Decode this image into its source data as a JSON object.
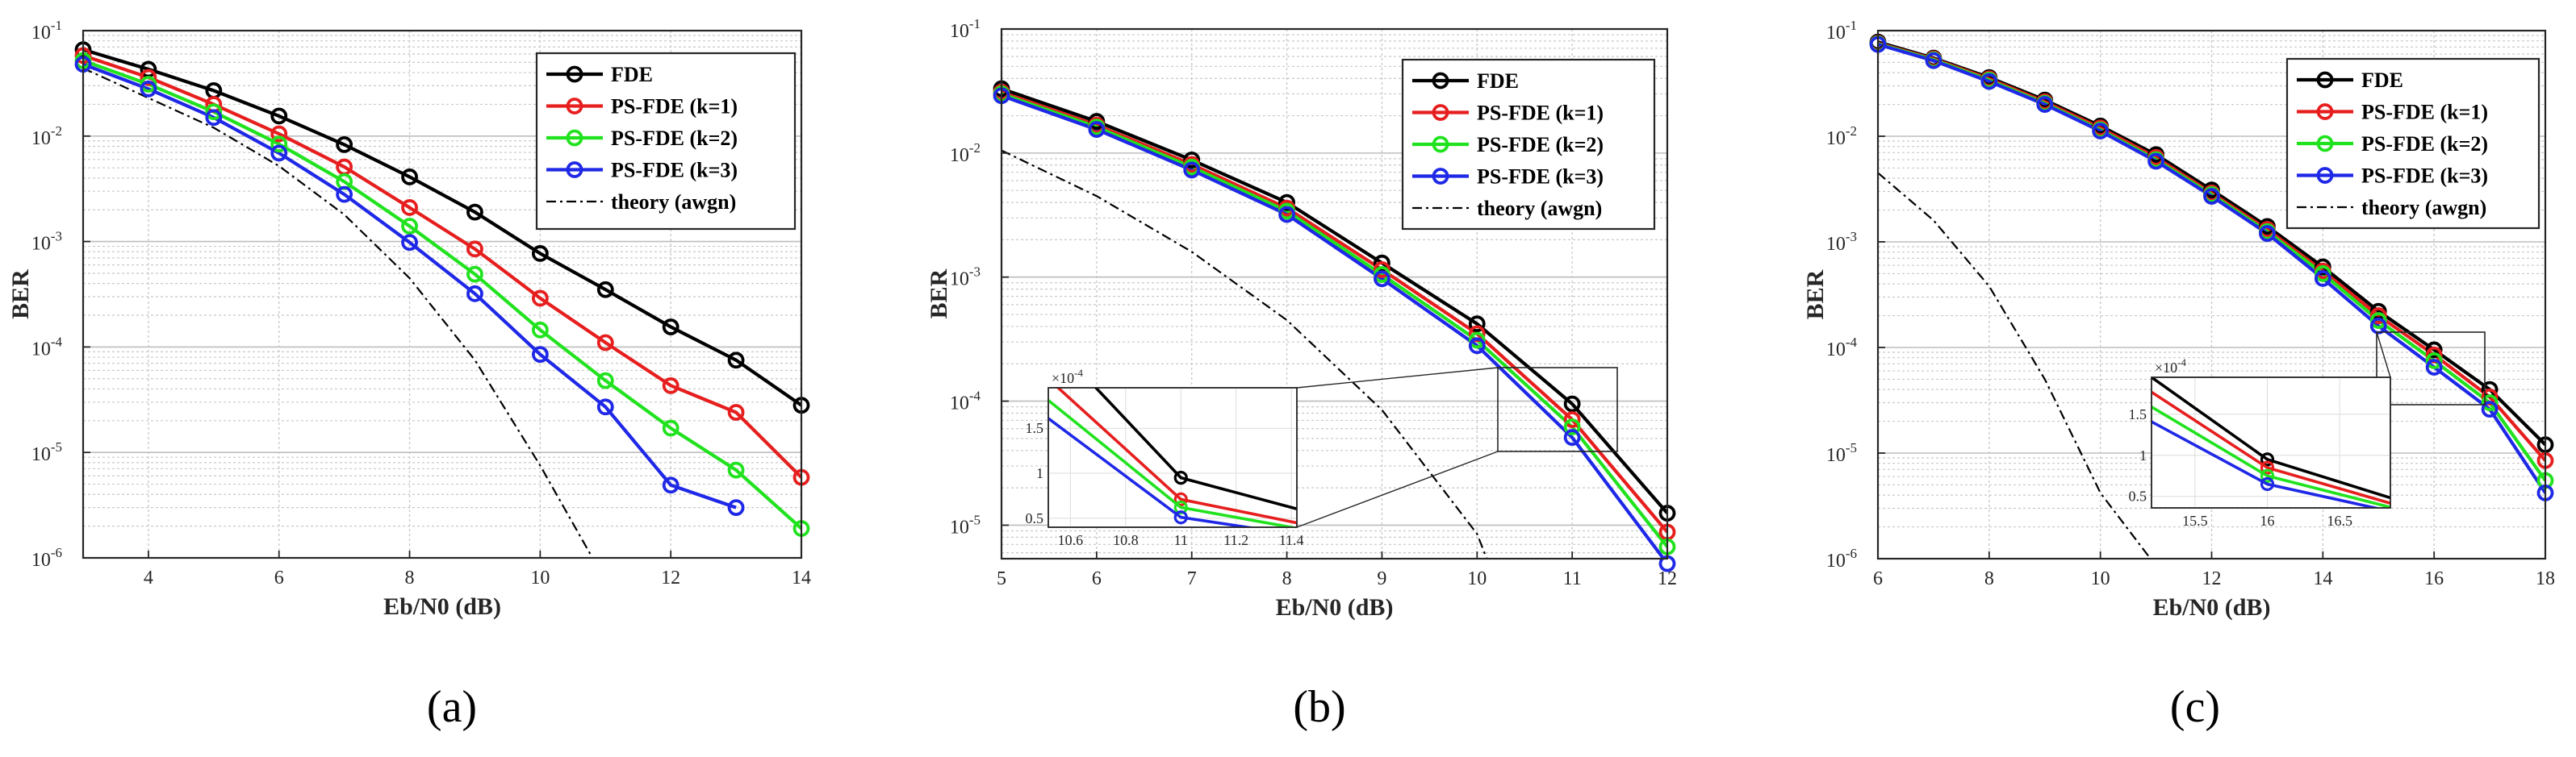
{
  "figure_labels": {
    "a": "(a)",
    "b": "(b)",
    "c": "(c)"
  },
  "colors": {
    "FDE": "#000000",
    "k1": "#e61e1e",
    "k2": "#21e21e",
    "k3": "#1e28e6",
    "theory": "#000000",
    "grid": "#c8c8c8",
    "gridMajor": "#bdbdbd"
  },
  "chart_data": [
    {
      "id": "a",
      "type": "line",
      "xlabel": "Eb/N0 (dB)",
      "ylabel": "BER",
      "yscale": "log",
      "xlim": [
        3,
        14
      ],
      "ylim_exp": [
        -6,
        -1
      ],
      "xticks": [
        "4",
        "6",
        "8",
        "10",
        "12",
        "14"
      ],
      "yticks": [
        "10",
        "10",
        "10",
        "10",
        "10",
        "10"
      ],
      "yticks_exp": [
        "-6",
        "-5",
        "-4",
        "-3",
        "-2",
        "-1"
      ],
      "legend": [
        "FDE",
        "PS-FDE (k=1)",
        "PS-FDE (k=2)",
        "PS-FDE (k=3)",
        "theory (awgn)"
      ],
      "legend_position": "top-right",
      "series": [
        {
          "name": "FDE",
          "x": [
            3,
            4,
            5,
            6,
            7,
            8,
            9,
            10,
            11,
            12,
            13,
            14
          ],
          "values": [
            0.066,
            0.043,
            0.027,
            0.0155,
            0.0083,
            0.0041,
            0.0019,
            0.00077,
            0.00035,
            0.000155,
            7.5e-05,
            2.8e-05
          ]
        },
        {
          "name": "PS-FDE (k=1)",
          "x": [
            3,
            4,
            5,
            6,
            7,
            8,
            9,
            10,
            11,
            12,
            13,
            14
          ],
          "values": [
            0.058,
            0.036,
            0.02,
            0.0105,
            0.0051,
            0.0021,
            0.00085,
            0.00029,
            0.00011,
            4.3e-05,
            2.4e-05,
            5.8e-06
          ]
        },
        {
          "name": "PS-FDE (k=2)",
          "x": [
            3,
            4,
            5,
            6,
            7,
            8,
            9,
            10,
            11,
            12,
            13,
            14
          ],
          "values": [
            0.052,
            0.031,
            0.017,
            0.0084,
            0.0037,
            0.0014,
            0.00049,
            0.000145,
            4.8e-05,
            1.7e-05,
            6.8e-06,
            1.9e-06
          ]
        },
        {
          "name": "PS-FDE (k=3)",
          "x": [
            3,
            4,
            5,
            6,
            7,
            8,
            9,
            10,
            11,
            12,
            13
          ],
          "values": [
            0.048,
            0.028,
            0.015,
            0.0069,
            0.0028,
            0.00098,
            0.00032,
            8.5e-05,
            2.7e-05,
            4.9e-06,
            3e-06
          ]
        },
        {
          "name": "theory (awgn)",
          "x": [
            3,
            4,
            5,
            6,
            7,
            8,
            9,
            10,
            10.8
          ],
          "values": [
            0.044,
            0.023,
            0.012,
            0.0052,
            0.0018,
            0.00045,
            7.5e-05,
            7.5e-06,
            1e-06
          ]
        }
      ]
    },
    {
      "id": "b",
      "type": "line",
      "xlabel": "Eb/N0 (dB)",
      "ylabel": "BER",
      "yscale": "log",
      "xlim": [
        5,
        12
      ],
      "ylim_exp": [
        -5.27,
        -1
      ],
      "xticks": [
        "5",
        "6",
        "7",
        "8",
        "9",
        "10",
        "11",
        "12"
      ],
      "yticks": [
        "10",
        "10",
        "10",
        "10",
        "10"
      ],
      "yticks_exp": [
        "-5",
        "-4",
        "-3",
        "-2",
        "-1"
      ],
      "legend": [
        "FDE",
        "PS-FDE (k=1)",
        "PS-FDE (k=2)",
        "PS-FDE (k=3)",
        "theory (awgn)"
      ],
      "legend_position": "top-right",
      "series": [
        {
          "name": "FDE",
          "x": [
            5,
            6,
            7,
            8,
            9,
            10,
            11,
            12
          ],
          "values": [
            0.033,
            0.018,
            0.0088,
            0.004,
            0.0013,
            0.00042,
            9.5e-05,
            1.25e-05
          ]
        },
        {
          "name": "PS-FDE (k=1)",
          "x": [
            5,
            6,
            7,
            8,
            9,
            10,
            11,
            12
          ],
          "values": [
            0.031,
            0.0168,
            0.0081,
            0.0036,
            0.00115,
            0.00035,
            7.1e-05,
            8.8e-06
          ]
        },
        {
          "name": "PS-FDE (k=2)",
          "x": [
            5,
            6,
            7,
            8,
            9,
            10,
            11,
            12
          ],
          "values": [
            0.03,
            0.0162,
            0.0077,
            0.0034,
            0.00105,
            0.00031,
            6.2e-05,
            6.7e-06
          ]
        },
        {
          "name": "PS-FDE (k=3)",
          "x": [
            5,
            6,
            7,
            8,
            9,
            10,
            11,
            12
          ],
          "values": [
            0.029,
            0.0155,
            0.0073,
            0.0032,
            0.00097,
            0.00028,
            5.1e-05,
            4.9e-06
          ]
        },
        {
          "name": "theory (awgn)",
          "x": [
            5,
            6,
            7,
            8,
            9,
            10,
            10.1
          ],
          "values": [
            0.0105,
            0.0045,
            0.0016,
            0.00045,
            8.5e-05,
            8.5e-06,
            5.4e-06
          ]
        }
      ],
      "inset": {
        "xlim": [
          10.52,
          11.42
        ],
        "ylim": [
          4e-05,
          0.000195
        ],
        "scale_label": "×10",
        "scale_exp": "-4",
        "xticks": [
          "10.6",
          "10.8",
          "11",
          "11.2",
          "11.4"
        ],
        "yticks": [
          "0.5",
          "1",
          "1.5"
        ]
      }
    },
    {
      "id": "c",
      "type": "line",
      "xlabel": "Eb/N0 (dB)",
      "ylabel": "BER",
      "yscale": "log",
      "xlim": [
        6,
        18
      ],
      "ylim_exp": [
        -6,
        -1
      ],
      "xticks": [
        "6",
        "8",
        "10",
        "12",
        "14",
        "16",
        "18"
      ],
      "yticks": [
        "10",
        "10",
        "10",
        "10",
        "10",
        "10"
      ],
      "yticks_exp": [
        "-6",
        "-5",
        "-4",
        "-3",
        "-2",
        "-1"
      ],
      "legend": [
        "FDE",
        "PS-FDE (k=1)",
        "PS-FDE (k=2)",
        "PS-FDE (k=3)",
        "theory (awgn)"
      ],
      "legend_position": "top-right",
      "series": [
        {
          "name": "FDE",
          "x": [
            6,
            7,
            8,
            9,
            10,
            11,
            12,
            13,
            14,
            15,
            16,
            17,
            18
          ],
          "values": [
            0.078,
            0.055,
            0.036,
            0.022,
            0.0125,
            0.0067,
            0.0031,
            0.0014,
            0.00058,
            0.00022,
            9.5e-05,
            4e-05,
            1.2e-05
          ]
        },
        {
          "name": "PS-FDE (k=1)",
          "x": [
            6,
            7,
            8,
            9,
            10,
            11,
            12,
            13,
            14,
            15,
            16,
            17,
            18
          ],
          "values": [
            0.076,
            0.054,
            0.035,
            0.0212,
            0.012,
            0.0063,
            0.0029,
            0.00131,
            0.00053,
            0.0002,
            8.5e-05,
            3.4e-05,
            8.5e-06
          ]
        },
        {
          "name": "PS-FDE (k=2)",
          "x": [
            6,
            7,
            8,
            9,
            10,
            11,
            12,
            13,
            14,
            15,
            16,
            17,
            18
          ],
          "values": [
            0.075,
            0.053,
            0.034,
            0.0205,
            0.0115,
            0.006,
            0.0028,
            0.00125,
            0.0005,
            0.00018,
            7.5e-05,
            3e-05,
            5.5e-06
          ]
        },
        {
          "name": "PS-FDE (k=3)",
          "x": [
            6,
            7,
            8,
            9,
            10,
            11,
            12,
            13,
            14,
            15,
            16,
            17,
            18
          ],
          "values": [
            0.074,
            0.052,
            0.033,
            0.02,
            0.0112,
            0.0058,
            0.0027,
            0.0012,
            0.00045,
            0.00016,
            6.5e-05,
            2.6e-05,
            4.2e-06
          ]
        },
        {
          "name": "theory (awgn)",
          "x": [
            6,
            7,
            8,
            9,
            10,
            10.9
          ],
          "values": [
            0.0045,
            0.0016,
            0.00038,
            5e-05,
            4.2e-06,
            1e-06
          ]
        }
      ],
      "inset": {
        "xlim": [
          15.2,
          16.85
        ],
        "ylim": [
          3.6e-05,
          0.000195
        ],
        "scale_label": "×10",
        "scale_exp": "-4",
        "xticks": [
          "15.5",
          "16",
          "16.5"
        ],
        "yticks": [
          "0.5",
          "1",
          "1.5"
        ]
      }
    }
  ]
}
